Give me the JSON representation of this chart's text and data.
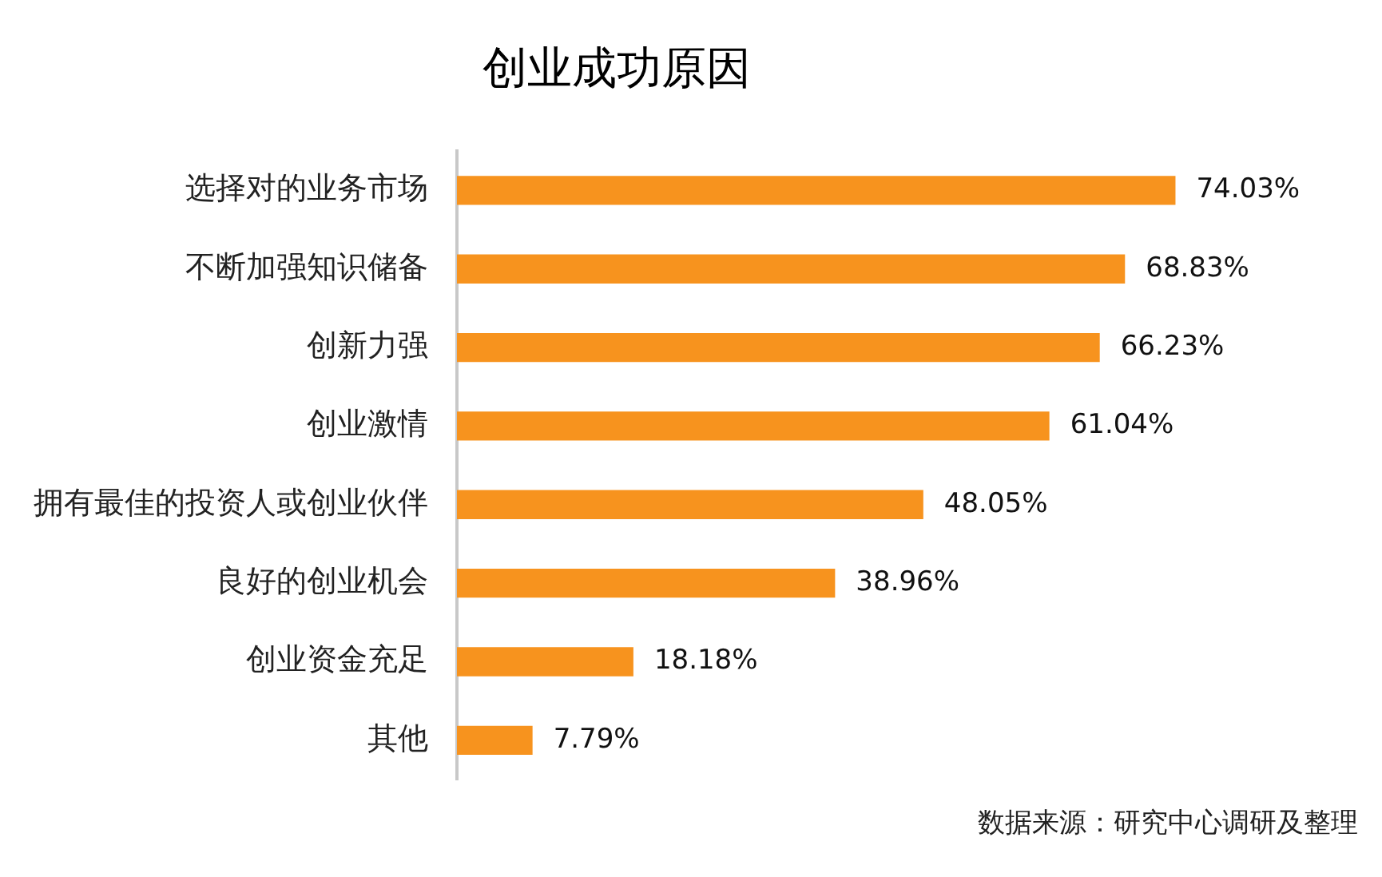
{
  "chart_data": {
    "type": "bar",
    "orientation": "horizontal",
    "title": "创业成功原因",
    "categories": [
      "选择对的业务市场",
      "不断加强知识储备",
      "创新力强",
      "创业激情",
      "拥有最佳的投资人或创业伙伴",
      "良好的创业机会",
      "创业资金充足",
      "其他"
    ],
    "values": [
      74.03,
      68.83,
      66.23,
      61.04,
      48.05,
      38.96,
      18.18,
      7.79
    ],
    "value_labels": [
      "74.03%",
      "68.83%",
      "66.23%",
      "61.04%",
      "48.05%",
      "38.96%",
      "18.18%",
      "7.79%"
    ],
    "color": "#f7931e",
    "annotations": [
      "数据来源：研究中心调研及整理"
    ]
  }
}
